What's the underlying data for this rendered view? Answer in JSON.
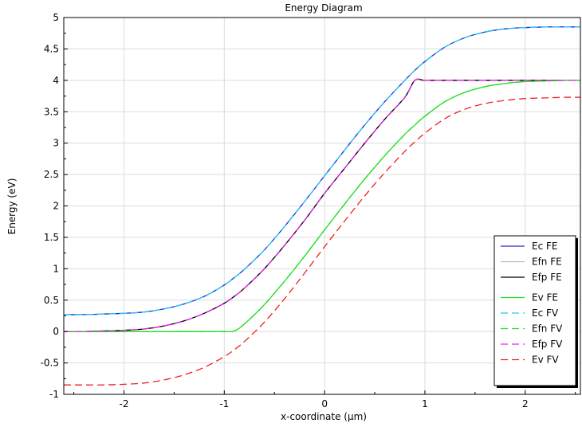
{
  "chart_data": {
    "type": "line",
    "title": "Energy Diagram",
    "xlabel": "x-coordinate (µm)",
    "ylabel": "Energy (eV)",
    "xlim": [
      -2.6,
      2.55
    ],
    "ylim": [
      -1,
      5
    ],
    "xticks": [
      -2,
      -1,
      0,
      1,
      2
    ],
    "yticks": [
      -1,
      -0.5,
      0,
      0.5,
      1,
      1.5,
      2,
      2.5,
      3,
      3.5,
      4,
      4.5,
      5
    ],
    "grid": true,
    "legend_position": "lower-right",
    "x": [
      -2.6,
      -2.4,
      -2.2,
      -2.0,
      -1.8,
      -1.6,
      -1.4,
      -1.2,
      -1.0,
      -0.9,
      -0.8,
      -0.6,
      -0.4,
      -0.2,
      0.0,
      0.2,
      0.4,
      0.6,
      0.8,
      0.9,
      1.0,
      1.2,
      1.4,
      1.6,
      1.8,
      2.0,
      2.2,
      2.4,
      2.55
    ],
    "series": [
      {
        "name": "Ec FE",
        "color": "#2a2ad6",
        "dash": "solid",
        "values": [
          0.27,
          0.27,
          0.28,
          0.29,
          0.31,
          0.36,
          0.44,
          0.56,
          0.74,
          0.86,
          0.99,
          1.3,
          1.67,
          2.07,
          2.48,
          2.89,
          3.29,
          3.66,
          4.0,
          4.16,
          4.3,
          4.53,
          4.68,
          4.77,
          4.82,
          4.84,
          4.85,
          4.85,
          4.85
        ]
      },
      {
        "name": "Efn FE",
        "color": "#b8b8b8",
        "dash": "solid",
        "values": [
          0.0,
          0.0,
          0.01,
          0.02,
          0.04,
          0.09,
          0.17,
          0.29,
          0.45,
          0.56,
          0.69,
          1.0,
          1.37,
          1.77,
          2.2,
          2.6,
          3.0,
          3.38,
          3.73,
          4.0,
          4.0,
          4.0,
          4.0,
          4.0,
          4.0,
          4.0,
          4.0,
          4.0,
          4.0
        ]
      },
      {
        "name": "Efp FE",
        "color": "#000000",
        "dash": "solid",
        "values": [
          0.0,
          0.0,
          0.01,
          0.02,
          0.04,
          0.09,
          0.17,
          0.29,
          0.45,
          0.56,
          0.69,
          1.0,
          1.37,
          1.77,
          2.2,
          2.6,
          3.0,
          3.38,
          3.73,
          4.0,
          4.0,
          4.0,
          4.0,
          4.0,
          4.0,
          4.0,
          4.0,
          4.0,
          4.0
        ]
      },
      {
        "name": "Ev FE",
        "color": "#22dd22",
        "dash": "solid",
        "values": [
          0.0,
          0.0,
          0.0,
          0.0,
          0.0,
          0.0,
          0.0,
          0.0,
          0.0,
          0.01,
          0.12,
          0.43,
          0.8,
          1.2,
          1.62,
          2.03,
          2.43,
          2.8,
          3.14,
          3.29,
          3.43,
          3.66,
          3.81,
          3.9,
          3.95,
          3.98,
          3.99,
          4.0,
          4.0
        ]
      },
      {
        "name": "Ec FV",
        "color": "#22ccee",
        "dash": "dashed",
        "values": [
          0.27,
          0.27,
          0.28,
          0.29,
          0.31,
          0.36,
          0.44,
          0.56,
          0.74,
          0.86,
          0.99,
          1.3,
          1.67,
          2.07,
          2.48,
          2.89,
          3.29,
          3.66,
          4.0,
          4.16,
          4.3,
          4.53,
          4.68,
          4.77,
          4.82,
          4.84,
          4.85,
          4.85,
          4.85
        ]
      },
      {
        "name": "Efn FV",
        "color": "#22dd22",
        "dash": "dashed",
        "values": [
          0.0,
          0.0,
          0.0,
          0.0,
          0.0,
          0.0,
          0.0,
          0.0,
          0.0,
          0.01,
          0.12,
          0.43,
          0.8,
          1.2,
          1.62,
          2.03,
          2.43,
          2.8,
          3.14,
          3.29,
          3.43,
          3.66,
          3.81,
          3.9,
          3.95,
          3.98,
          3.99,
          4.0,
          4.0
        ]
      },
      {
        "name": "Efp FV",
        "color": "#ee22ee",
        "dash": "dashed",
        "values": [
          0.0,
          0.0,
          0.01,
          0.02,
          0.04,
          0.09,
          0.17,
          0.29,
          0.45,
          0.56,
          0.69,
          1.0,
          1.37,
          1.77,
          2.2,
          2.6,
          3.0,
          3.38,
          3.73,
          4.0,
          4.0,
          4.0,
          4.0,
          4.0,
          4.0,
          4.0,
          4.0,
          4.0,
          4.0
        ]
      },
      {
        "name": "Ev FV",
        "color": "#ee2222",
        "dash": "dashed",
        "values": [
          -0.85,
          -0.85,
          -0.85,
          -0.84,
          -0.82,
          -0.77,
          -0.69,
          -0.57,
          -0.4,
          -0.29,
          -0.16,
          0.15,
          0.52,
          0.93,
          1.35,
          1.76,
          2.16,
          2.53,
          2.87,
          3.02,
          3.16,
          3.39,
          3.54,
          3.63,
          3.68,
          3.71,
          3.72,
          3.73,
          3.73
        ]
      }
    ]
  }
}
